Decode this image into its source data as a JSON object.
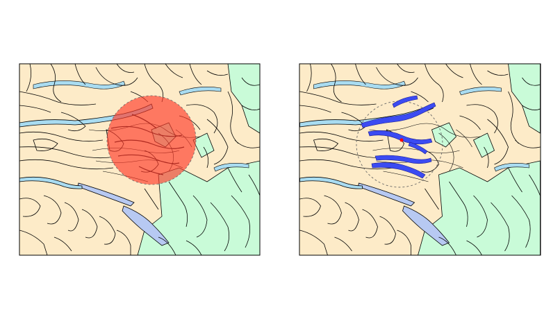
{
  "figure": {
    "panels": [
      {
        "id": "left",
        "overlay": "buffer-zone",
        "highlight": "none"
      },
      {
        "id": "right",
        "overlay": "dashed-radius",
        "highlight": "streams-within-radius"
      }
    ]
  },
  "colors": {
    "background": "#ffffff",
    "map_land": "#fdebc8",
    "vegetation": "#c9fbd8",
    "water": "#a9dcf1",
    "lake": "#b7c9f2",
    "outline": "#000000",
    "buffer_fill": "#ff3b2a",
    "buffer_fill_opacity": 0.65,
    "buffer_inner": "#c4362c",
    "highlight_streams": "#3b4bf2",
    "center_marker": "#ff0000",
    "dashed_circle": "#666666"
  },
  "icons": {
    "center_marker": "point-marker"
  }
}
